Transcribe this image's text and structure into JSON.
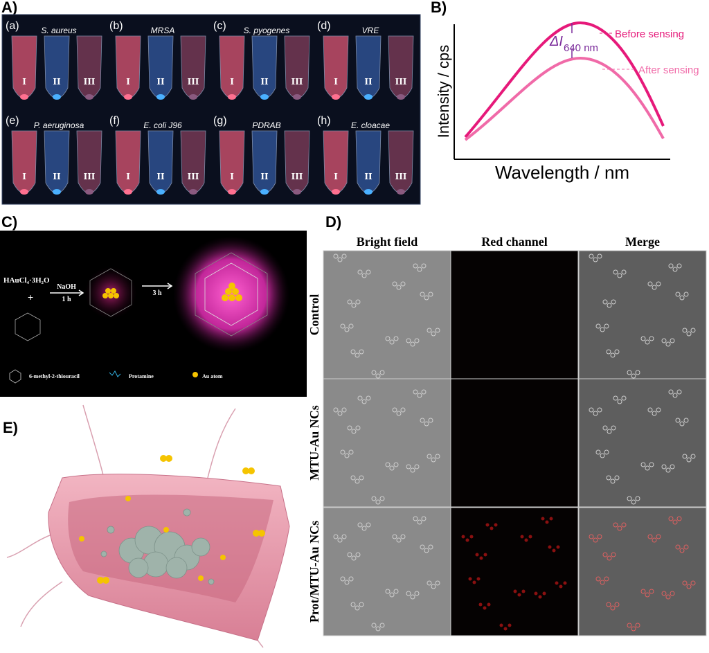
{
  "panel_a": {
    "label": "A)",
    "subpanels": [
      {
        "label": "(a)",
        "organism": "S. aureus",
        "tubes": [
          "I",
          "II",
          "III"
        ]
      },
      {
        "label": "(b)",
        "organism": "MRSA",
        "tubes": [
          "I",
          "II",
          "III"
        ]
      },
      {
        "label": "(c)",
        "organism": "S. pyogenes",
        "tubes": [
          "I",
          "II",
          "III"
        ]
      },
      {
        "label": "(d)",
        "organism": "VRE",
        "tubes": [
          "I",
          "II",
          "III"
        ]
      },
      {
        "label": "(e)",
        "organism": "P. aeruginosa",
        "tubes": [
          "I",
          "II",
          "III"
        ]
      },
      {
        "label": "(f)",
        "organism": "E. coli J96",
        "tubes": [
          "I",
          "II",
          "III"
        ]
      },
      {
        "label": "(g)",
        "organism": "PDRAB",
        "tubes": [
          "I",
          "II",
          "III"
        ]
      },
      {
        "label": "(h)",
        "organism": "E. cloacae",
        "tubes": [
          "I",
          "II",
          "III"
        ]
      }
    ]
  },
  "panel_b": {
    "label": "B)",
    "y_axis_label": "Intensity / cps",
    "x_axis_label": "Wavelength / nm",
    "delta_label": "ΔI",
    "delta_subscript": "640 nm",
    "before_label": "Before sensing",
    "after_label": "After sensing"
  },
  "panel_c": {
    "label": "C)",
    "reagent": "HAuCl₄·3H₂O",
    "plus": "+",
    "step1_reagent": "NaOH",
    "step1_time": "1 h",
    "step2_time": "3 h",
    "legend": [
      "6-methyl-2-thiouracil",
      "Protamine",
      "Au atom"
    ]
  },
  "panel_d": {
    "label": "D)",
    "columns": [
      "Bright field",
      "Red channel",
      "Merge"
    ],
    "rows": [
      "Control",
      "MTU-Au NCs",
      "Prot/MTU-Au NCs"
    ]
  },
  "panel_e": {
    "label": "E)"
  }
}
